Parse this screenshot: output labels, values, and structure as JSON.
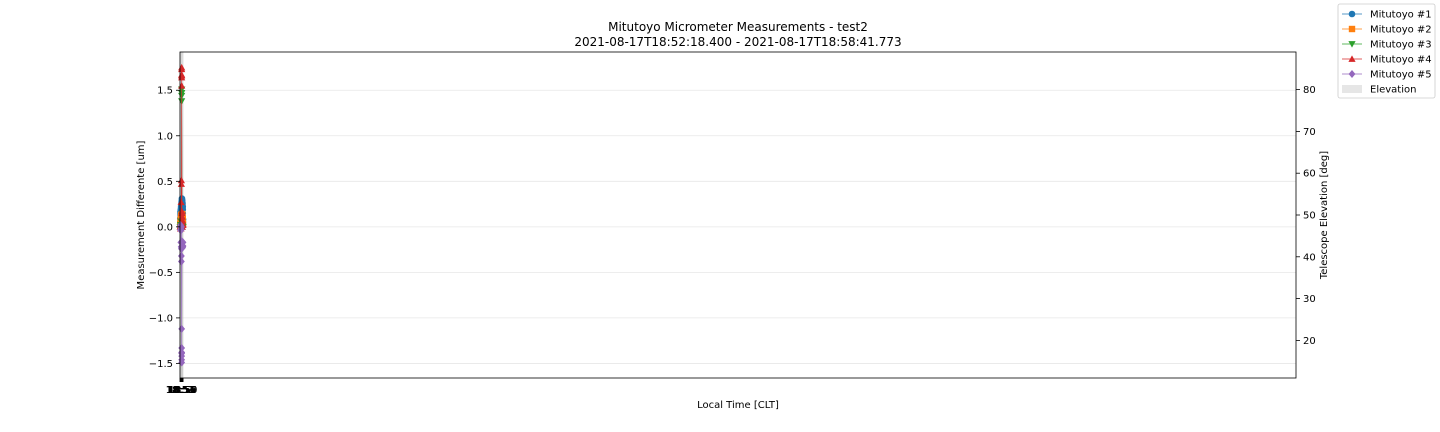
{
  "chart_data": {
    "type": "line",
    "title": "Mitutoyo Micrometer Measurements - test2",
    "subtitle": "2021-08-17T18:52:18.400 - 2021-08-17T18:58:41.773",
    "xlabel": "Local Time [CLT]",
    "ylabel": "Measurement Differente [um]",
    "y2label": "Telescope Elevation [deg]",
    "x_unit": "minutes",
    "xlim": [
      18.87,
      58.97
    ],
    "ylim": [
      -1.66,
      1.92
    ],
    "y2lim": [
      11,
      89
    ],
    "x_ticks": [
      {
        "value": 18.87,
        "label": "18:52"
      },
      {
        "value": 18.88,
        "label": "18:53"
      },
      {
        "value": 18.9,
        "label": "18:54"
      },
      {
        "value": 18.92,
        "label": "18:55"
      },
      {
        "value": 18.93,
        "label": "18:56"
      },
      {
        "value": 18.95,
        "label": "18:57"
      },
      {
        "value": 18.97,
        "label": "18:58"
      },
      {
        "value": 18.98,
        "label": "18:59"
      }
    ],
    "y_ticks": [
      -1.5,
      -1.0,
      -0.5,
      0.0,
      0.5,
      1.0,
      1.5
    ],
    "y_tick_labels": [
      "−1.5",
      "−1.0",
      "−0.5",
      "0.0",
      "0.5",
      "1.0",
      "1.5"
    ],
    "y2_ticks": [
      20,
      30,
      40,
      50,
      60,
      70,
      80
    ],
    "grid": true,
    "legend_position": "top-right, outside",
    "series": [
      {
        "name": "Mitutoyo #1",
        "color": "#1f77b4",
        "marker": "circle",
        "x": [
          18.88,
          18.88,
          18.88,
          18.88,
          18.89,
          18.89,
          18.89,
          18.89,
          18.9,
          18.9,
          18.91,
          18.91,
          18.92,
          18.92,
          18.93,
          18.93,
          18.93,
          18.94,
          18.94,
          18.95,
          18.95,
          18.96,
          18.96,
          18.97,
          18.97,
          18.97,
          18.98
        ],
        "y": [
          0.0,
          0.0,
          0.04,
          0.09,
          0.12,
          0.14,
          0.16,
          0.17,
          0.18,
          0.19,
          0.21,
          0.22,
          0.23,
          0.25,
          0.26,
          0.27,
          0.28,
          0.31,
          0.3,
          0.29,
          0.28,
          0.26,
          0.24,
          0.22,
          0.19,
          0.15,
          0.08
        ]
      },
      {
        "name": "Mitutoyo #2",
        "color": "#ff7f0e",
        "marker": "square",
        "x": [
          18.88,
          18.88,
          18.88,
          18.89,
          18.89,
          18.9,
          18.91,
          18.91,
          18.92,
          18.93,
          18.93,
          18.93,
          18.94,
          18.95,
          18.95,
          18.96,
          18.97,
          18.97,
          18.98
        ],
        "y": [
          0.0,
          0.0,
          0.03,
          0.05,
          0.07,
          0.09,
          0.1,
          0.12,
          0.13,
          0.13,
          0.12,
          0.12,
          0.14,
          0.14,
          0.13,
          0.11,
          0.09,
          0.06,
          0.03
        ]
      },
      {
        "name": "Mitutoyo #3",
        "color": "#2ca02c",
        "marker": "triangle-down",
        "x": [
          18.88,
          18.88,
          18.89,
          18.9,
          18.9,
          18.91,
          18.91,
          18.91,
          18.92,
          18.92,
          18.92,
          18.93,
          18.93,
          18.93,
          18.93,
          18.93,
          18.93,
          18.93,
          18.94,
          18.94,
          18.94,
          18.95,
          18.95,
          18.96,
          18.97,
          18.98
        ],
        "y": [
          0.0,
          0.0,
          0.02,
          0.02,
          0.0,
          0.0,
          0.06,
          0.0,
          0.0,
          0.06,
          0.0,
          0.0,
          1.44,
          1.47,
          1.47,
          1.51,
          1.51,
          1.38,
          0.02,
          0.0,
          0.01,
          0.0,
          0.01,
          0.01,
          0.0,
          0.0
        ]
      },
      {
        "name": "Mitutoyo #4",
        "color": "#d62728",
        "marker": "triangle-up",
        "x": [
          18.88,
          18.88,
          18.89,
          18.9,
          18.9,
          18.91,
          18.91,
          18.92,
          18.92,
          18.92,
          18.92,
          18.92,
          18.92,
          18.93,
          18.93,
          18.93,
          18.93,
          18.93,
          18.93,
          18.94,
          18.94,
          18.94,
          18.94,
          18.95,
          18.95,
          18.95,
          18.96,
          18.96,
          18.97,
          18.98
        ],
        "y": [
          0.0,
          0.0,
          -0.02,
          -0.02,
          -0.02,
          0.27,
          0.0,
          0.47,
          0.0,
          0.51,
          0.0,
          0.0,
          0.05,
          1.64,
          1.67,
          1.66,
          1.73,
          1.75,
          1.55,
          0.05,
          0.17,
          0.0,
          0.15,
          0.0,
          0.11,
          0.0,
          0.07,
          0.02,
          0.03,
          0.02
        ]
      },
      {
        "name": "Mitutoyo #5",
        "color": "#9467bd",
        "marker": "diamond",
        "x": [
          18.88,
          18.88,
          18.88,
          18.89,
          18.9,
          18.9,
          18.9,
          18.91,
          18.91,
          18.91,
          18.92,
          18.92,
          18.92,
          18.92,
          18.92,
          18.92,
          18.93,
          18.93,
          18.93,
          18.93,
          18.93,
          18.93,
          18.93,
          18.93,
          18.94,
          18.94,
          18.94,
          18.95,
          18.95,
          18.96,
          18.97,
          18.98,
          18.98
        ],
        "y": [
          0.0,
          0.0,
          -0.03,
          0.02,
          -0.04,
          0.0,
          -0.17,
          0.0,
          -0.22,
          0.0,
          -0.24,
          -0.32,
          0.0,
          -0.38,
          0.0,
          -0.03,
          -1.33,
          -1.38,
          -1.38,
          -1.39,
          -1.46,
          -1.49,
          -1.42,
          -1.12,
          -0.16,
          -0.22,
          -0.17,
          -0.21,
          -0.22,
          -0.23,
          -0.22,
          -0.21,
          -0.17
        ]
      },
      {
        "name": "Elevation",
        "color": "#e6e6e6",
        "type": "area",
        "axis": "right",
        "x": [
          18.87,
          18.88,
          18.88,
          18.89,
          18.89,
          18.9,
          18.9,
          18.91,
          18.91,
          18.92,
          18.92,
          18.93,
          18.93,
          18.93,
          18.94,
          18.94,
          18.95,
          18.95,
          18.96,
          18.97,
          18.97,
          18.98
        ],
        "y": [
          83,
          76,
          69,
          62,
          55,
          48,
          41,
          34,
          27,
          20,
          16,
          23,
          30,
          37,
          44,
          51,
          58,
          65,
          72,
          79,
          83,
          83
        ]
      }
    ]
  }
}
